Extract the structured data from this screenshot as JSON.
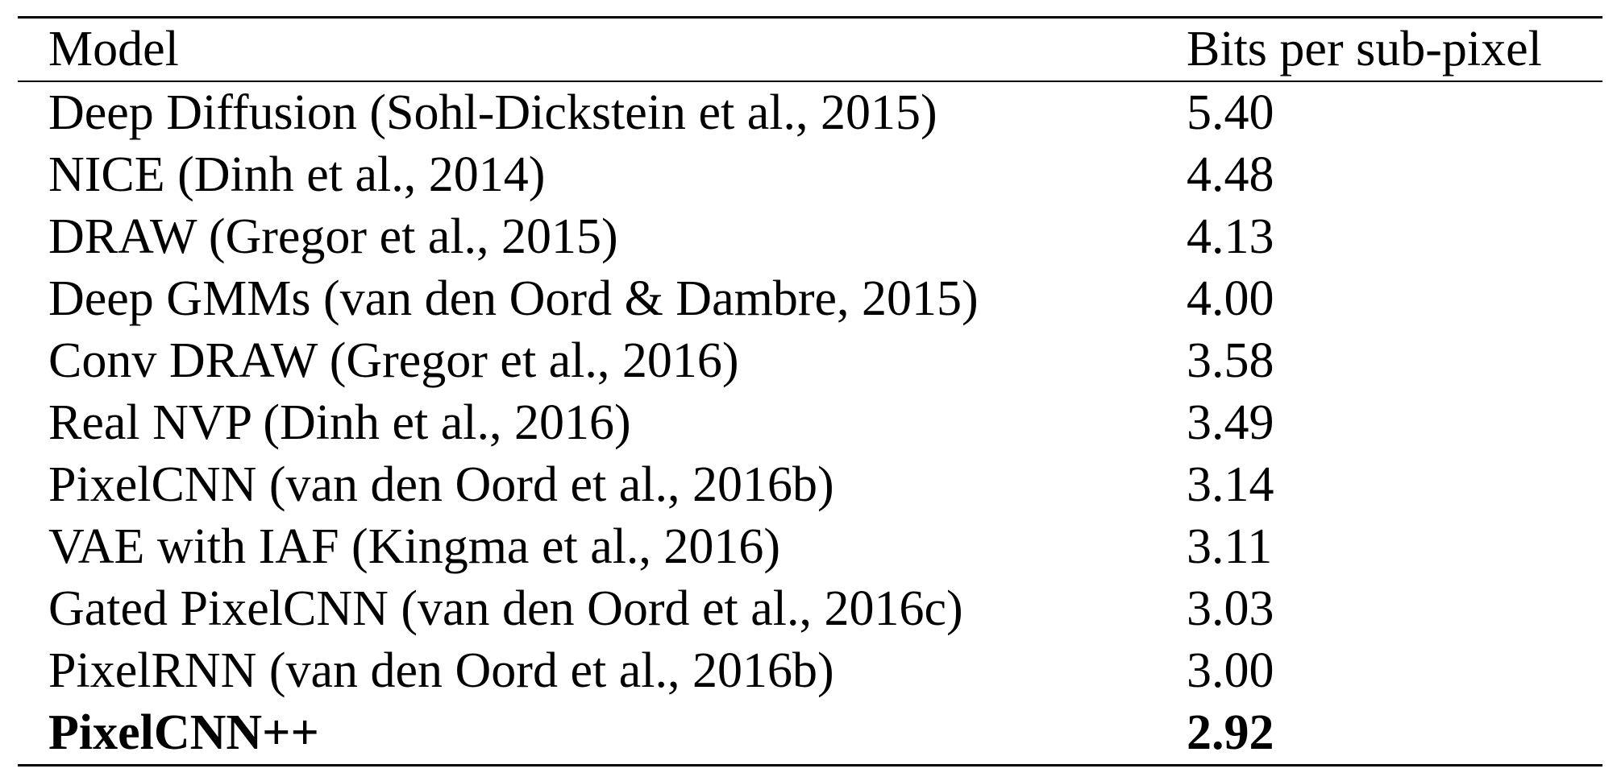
{
  "table": {
    "columns": [
      "Model",
      "Bits per sub-pixel"
    ],
    "rows": [
      {
        "model": "Deep Diffusion (Sohl-Dickstein et al., 2015)",
        "score": "5.40"
      },
      {
        "model": "NICE (Dinh et al., 2014)",
        "score": "4.48"
      },
      {
        "model": "DRAW (Gregor et al., 2015)",
        "score": "4.13"
      },
      {
        "model": "Deep GMMs (van den Oord & Dambre, 2015)",
        "score": "4.00"
      },
      {
        "model": "Conv DRAW (Gregor et al., 2016)",
        "score": "3.58"
      },
      {
        "model": "Real NVP (Dinh et al., 2016)",
        "score": "3.49"
      },
      {
        "model": "PixelCNN (van den Oord et al., 2016b)",
        "score": "3.14"
      },
      {
        "model": "VAE with IAF (Kingma et al., 2016)",
        "score": "3.11"
      },
      {
        "model": "Gated PixelCNN (van den Oord et al., 2016c)",
        "score": "3.03"
      },
      {
        "model": "PixelRNN (van den Oord et al., 2016b)",
        "score": "3.00"
      },
      {
        "model": "PixelCNN++",
        "score": "2.92"
      }
    ]
  }
}
